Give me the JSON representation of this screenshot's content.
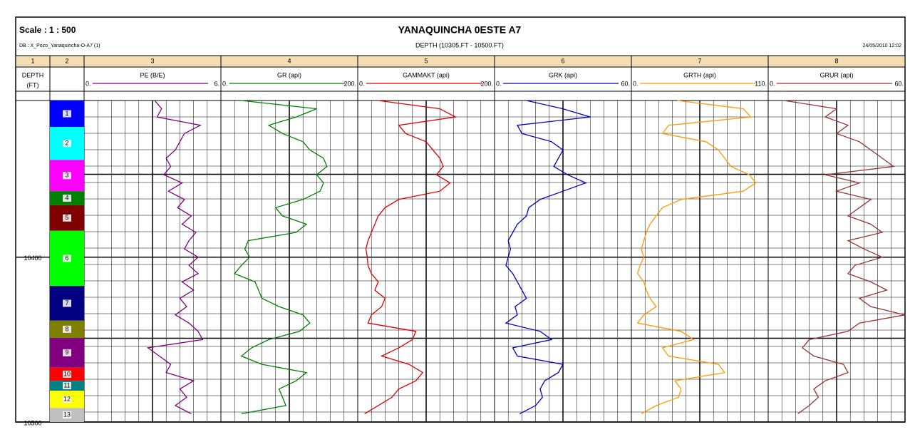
{
  "header": {
    "scale_label": "Scale : 1 : 500",
    "db": "DB : X_Pozo_Yanaquincha-O-A7 (1)",
    "title": "YANAQUINCHA 0ESTE A7",
    "subtitle": "DEPTH (10305.FT - 10500.FT)",
    "date": "24/05/2010 12:02"
  },
  "column_numbers": [
    "1",
    "2",
    "3",
    "4",
    "5",
    "6",
    "7",
    "8"
  ],
  "depth_track": {
    "label": "DEPTH",
    "unit": "(FT)",
    "ylim": [
      10305,
      10500
    ],
    "ticks": [
      10400,
      10500
    ]
  },
  "zones": [
    {
      "label": "1",
      "color": "#0000ff",
      "top": 10305,
      "bottom": 10321
    },
    {
      "label": "2",
      "color": "#00ffff",
      "top": 10321,
      "bottom": 10341
    },
    {
      "label": "3",
      "color": "#ff00ff",
      "top": 10341,
      "bottom": 10360
    },
    {
      "label": "4",
      "color": "#008000",
      "top": 10360,
      "bottom": 10368.5
    },
    {
      "label": "5",
      "color": "#800000",
      "top": 10368.5,
      "bottom": 10384
    },
    {
      "label": "6",
      "color": "#00ff00",
      "top": 10384,
      "bottom": 10417.5
    },
    {
      "label": "7",
      "color": "#000080",
      "top": 10417.5,
      "bottom": 10438.5
    },
    {
      "label": "8",
      "color": "#808000",
      "top": 10438.5,
      "bottom": 10449
    },
    {
      "label": "9",
      "color": "#800080",
      "top": 10449,
      "bottom": 10467
    },
    {
      "label": "10",
      "color": "#ff0000",
      "top": 10467,
      "bottom": 10475
    },
    {
      "label": "11",
      "color": "#008080",
      "top": 10475,
      "bottom": 10481
    },
    {
      "label": "12",
      "color": "#ffff00",
      "top": 10481,
      "bottom": 10491.5
    },
    {
      "label": "13",
      "color": "#c0c0c0",
      "top": 10491.5,
      "bottom": 10500
    }
  ],
  "depths": [
    10305,
    10310,
    10315,
    10320,
    10325,
    10330,
    10335,
    10340,
    10345,
    10350,
    10355,
    10360,
    10365,
    10370,
    10375,
    10380,
    10385,
    10390,
    10395,
    10400,
    10405,
    10410,
    10415,
    10420,
    10425,
    10430,
    10435,
    10440,
    10445,
    10450,
    10455,
    10460,
    10465,
    10470,
    10475,
    10480,
    10485,
    10490,
    10495
  ],
  "tracks": [
    {
      "name": "PE (B/E)",
      "color": "#800080",
      "min": {
        "value": 0,
        "label": "0."
      },
      "max": {
        "value": 6,
        "label": "6."
      },
      "values": [
        3.1,
        3.4,
        3.2,
        5.1,
        4.4,
        4.2,
        4.0,
        3.6,
        3.8,
        3.5,
        4.3,
        3.7,
        4.4,
        4.1,
        4.7,
        4.3,
        4.9,
        4.6,
        4.4,
        5.0,
        4.6,
        5.0,
        4.3,
        4.8,
        4.2,
        4.5,
        4.0,
        4.6,
        5.0,
        5.2,
        2.8,
        3.3,
        3.8,
        3.6,
        4.8,
        4.2,
        4.5,
        4.0,
        4.7
      ]
    },
    {
      "name": "GR (api)",
      "color": "#008000",
      "min": {
        "value": 0,
        "label": "0."
      },
      "max": {
        "value": 200,
        "label": "200."
      },
      "values": [
        30,
        140,
        110,
        70,
        90,
        120,
        130,
        150,
        155,
        140,
        150,
        145,
        120,
        80,
        90,
        125,
        110,
        40,
        35,
        42,
        30,
        20,
        50,
        55,
        60,
        85,
        120,
        130,
        115,
        70,
        45,
        30,
        60,
        125,
        110,
        85,
        90,
        95,
        30
      ]
    },
    {
      "name": "GAMMAKT (api)",
      "color": "#e00000",
      "min": {
        "value": 0,
        "label": "0."
      },
      "max": {
        "value": 200,
        "label": "200."
      },
      "values": [
        30,
        120,
        143,
        60,
        70,
        100,
        110,
        120,
        125,
        115,
        135,
        120,
        60,
        40,
        30,
        25,
        20,
        15,
        12,
        14,
        15,
        20,
        30,
        25,
        40,
        35,
        20,
        15,
        85,
        80,
        60,
        35,
        75,
        95,
        85,
        60,
        50,
        30,
        10
      ]
    },
    {
      "name": "GRK (api)",
      "color": "#0000c0",
      "min": {
        "value": 0,
        "label": "0."
      },
      "max": {
        "value": 60,
        "label": "60."
      },
      "values": [
        14,
        30,
        42,
        10,
        12,
        25,
        30,
        28,
        26,
        32,
        40,
        30,
        20,
        15,
        14,
        10,
        8,
        6,
        7,
        6,
        5,
        8,
        10,
        12,
        14,
        9,
        10,
        5,
        20,
        25,
        8,
        10,
        30,
        28,
        22,
        20,
        21,
        18,
        11
      ]
    },
    {
      "name": "GRTH (api)",
      "color": "#ff9900",
      "min": {
        "value": 0,
        "label": "0."
      },
      "max": {
        "value": 110,
        "label": "110."
      },
      "values": [
        37,
        90,
        96,
        30,
        25,
        60,
        70,
        75,
        80,
        95,
        100,
        90,
        40,
        25,
        20,
        15,
        12,
        10,
        8,
        10,
        7,
        5,
        10,
        12,
        15,
        20,
        10,
        5,
        40,
        50,
        25,
        30,
        70,
        75,
        35,
        40,
        38,
        20,
        8
      ]
    },
    {
      "name": "GRUR (api)",
      "color": "#993333",
      "min": {
        "value": 0,
        "label": "0."
      },
      "max": {
        "value": 60,
        "label": "60."
      },
      "values": [
        7,
        30,
        25,
        35,
        30,
        40,
        45,
        50,
        55,
        25,
        40,
        30,
        45,
        40,
        35,
        45,
        50,
        35,
        42,
        50,
        38,
        35,
        45,
        52,
        40,
        45,
        60,
        40,
        35,
        18,
        15,
        20,
        33,
        35,
        25,
        20,
        22,
        18,
        13
      ]
    }
  ]
}
